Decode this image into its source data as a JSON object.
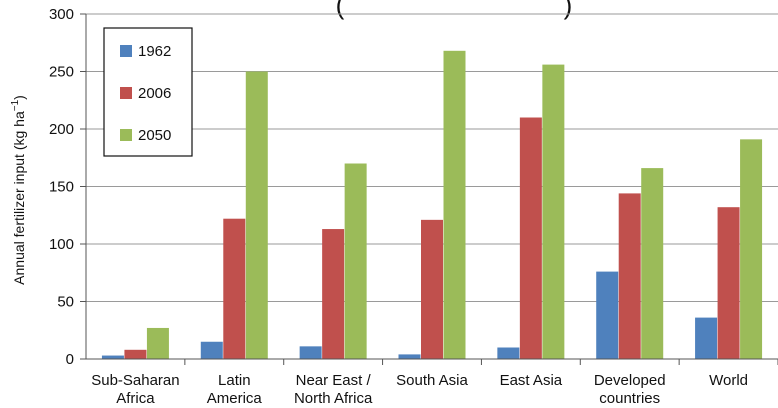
{
  "chart_data": {
    "type": "bar",
    "title_fragment": "(",
    "title_fragment_end": ")",
    "ylabel": "Annual fertilizer input (kg ha",
    "ylabel_sup": "−1",
    "ylabel_end": ")",
    "ylim": [
      0,
      300
    ],
    "yticks": [
      "0",
      "50",
      "100",
      "150",
      "200",
      "250",
      "300"
    ],
    "grid": true,
    "legend_position": "top-left",
    "categories": [
      [
        "Sub-Saharan",
        "Africa"
      ],
      [
        "Latin",
        "America"
      ],
      [
        "Near East /",
        "North Africa"
      ],
      [
        "South Asia"
      ],
      [
        "East Asia"
      ],
      [
        "Developed",
        "countries"
      ],
      [
        "World"
      ]
    ],
    "series": [
      {
        "name": "1962",
        "color": "#4f81bd",
        "values": [
          3,
          15,
          11,
          4,
          10,
          76,
          36
        ]
      },
      {
        "name": "2006",
        "color": "#c0504d",
        "values": [
          8,
          122,
          113,
          121,
          210,
          144,
          132
        ]
      },
      {
        "name": "2050",
        "color": "#9bbb59",
        "values": [
          27,
          250,
          170,
          268,
          256,
          166,
          191
        ]
      }
    ]
  }
}
